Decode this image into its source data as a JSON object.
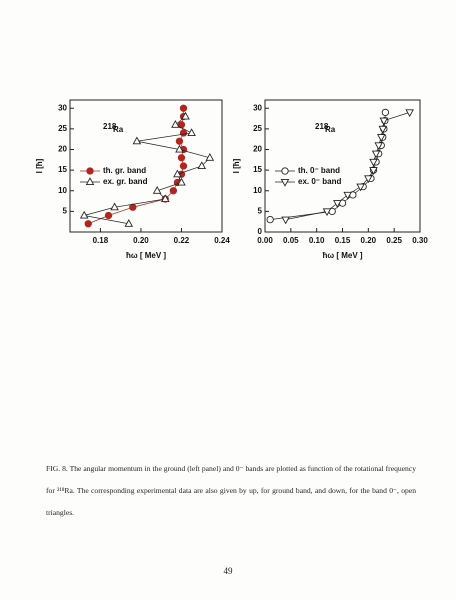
{
  "charts": [
    {
      "type": "scatter",
      "isotope_mass": "218",
      "isotope_symbol": "Ra",
      "xlabel": "ħω [ MeV ]",
      "ylabel": "I [ħ]",
      "xlim": [
        0.165,
        0.24
      ],
      "xticks": [
        0.18,
        {
          "value": 0.2,
          "label": "0.20"
        },
        0.22,
        0.24
      ],
      "ylim": [
        0,
        32
      ],
      "yticks": [
        5,
        10,
        15,
        20,
        25,
        30
      ],
      "legend": "center-left",
      "series": [
        {
          "name": "th. gr. band",
          "color": "#b3261e",
          "marker": "circle",
          "x": [
            0.174,
            0.184,
            0.196,
            0.212,
            0.216,
            0.218,
            0.22,
            0.221,
            0.22,
            0.221,
            0.219,
            0.221,
            0.22,
            0.221,
            0.221
          ],
          "values": [
            2,
            4,
            6,
            8,
            10,
            12,
            14,
            16,
            18,
            20,
            22,
            24,
            26,
            28,
            30
          ]
        },
        {
          "name": "ex. gr. band",
          "color": "#222222",
          "marker": "triangle-up",
          "x": [
            0.194,
            0.172,
            0.187,
            0.212,
            0.208,
            0.22,
            0.218,
            0.23,
            0.234,
            0.219,
            0.198,
            0.225,
            0.217,
            0.222
          ],
          "values": [
            2,
            4,
            6,
            8,
            10,
            12,
            14,
            16,
            18,
            20,
            22,
            24,
            26,
            28
          ]
        }
      ]
    },
    {
      "type": "scatter",
      "isotope_mass": "218",
      "isotope_symbol": "Ra",
      "xlabel": "ħω [ MeV ]",
      "ylabel": "I [ħ]",
      "xlim": [
        0,
        0.3
      ],
      "xticks": [
        {
          "value": 0,
          "label": "0.00"
        },
        0.05,
        {
          "value": 0.1,
          "label": "0.10"
        },
        0.15,
        {
          "value": 0.2,
          "label": "0.20"
        },
        0.25,
        {
          "value": 0.3,
          "label": "0.30"
        }
      ],
      "ylim": [
        0,
        32
      ],
      "yticks": [
        0,
        5,
        10,
        15,
        20,
        25,
        30
      ],
      "legend": "center-left",
      "series": [
        {
          "name": "th. 0⁻ band",
          "color": "#222222",
          "marker": "circle",
          "x": [
            0.01,
            0.13,
            0.15,
            0.17,
            0.19,
            0.205,
            0.21,
            0.215,
            0.22,
            0.225,
            0.228,
            0.23,
            0.232,
            0.233
          ],
          "values": [
            3,
            5,
            7,
            9,
            11,
            13,
            15,
            17,
            19,
            21,
            23,
            25,
            27,
            29
          ]
        },
        {
          "name": "ex. 0⁻ band",
          "color": "#222222",
          "marker": "triangle-down",
          "x": [
            0.04,
            0.12,
            0.14,
            0.16,
            0.185,
            0.2,
            0.21,
            0.21,
            0.215,
            0.22,
            0.225,
            0.228,
            0.23,
            0.28
          ],
          "values": [
            3,
            5,
            7,
            9,
            11,
            13,
            15,
            17,
            19,
            21,
            23,
            25,
            27,
            29
          ]
        }
      ]
    }
  ],
  "caption": "FIG. 8. The angular momentum in the ground (left panel) and 0⁻ bands are plotted as function of the rotational frequency for ²¹⁸Ra. The corresponding experimental data are also given by up, for ground band, and down, for the band 0⁻, open triangles.",
  "page_number": "49"
}
